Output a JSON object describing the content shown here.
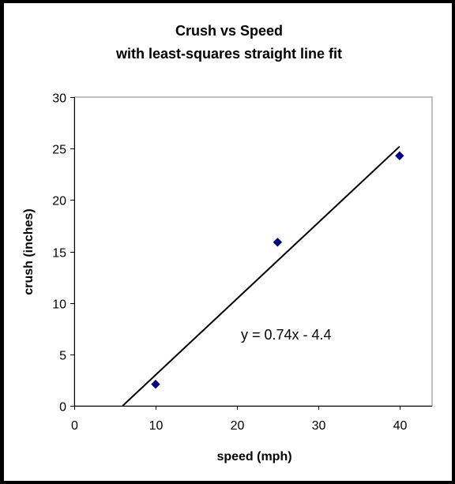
{
  "chart_data": {
    "type": "scatter",
    "title": "Crush vs Speed",
    "subtitle": "with least-squares straight line fit",
    "xlabel": "speed (mph)",
    "ylabel": "crush (inches)",
    "xlim": [
      0,
      44
    ],
    "ylim": [
      0,
      30
    ],
    "x_ticks": [
      "0",
      "10",
      "20",
      "30",
      "40"
    ],
    "y_ticks": [
      "0",
      "5",
      "10",
      "15",
      "20",
      "25",
      "30"
    ],
    "grid": false,
    "legend": "none",
    "series": [
      {
        "marker": "diamond",
        "color": "#000080",
        "points": [
          {
            "x": 10,
            "y": 2.1
          },
          {
            "x": 25,
            "y": 15.9
          },
          {
            "x": 40,
            "y": 24.3
          }
        ]
      }
    ],
    "trendline": {
      "slope": 0.74,
      "intercept": -4.4,
      "x_range": [
        5.95,
        40
      ],
      "color": "#000000",
      "equation": "y = 0.74x - 4.4"
    }
  }
}
